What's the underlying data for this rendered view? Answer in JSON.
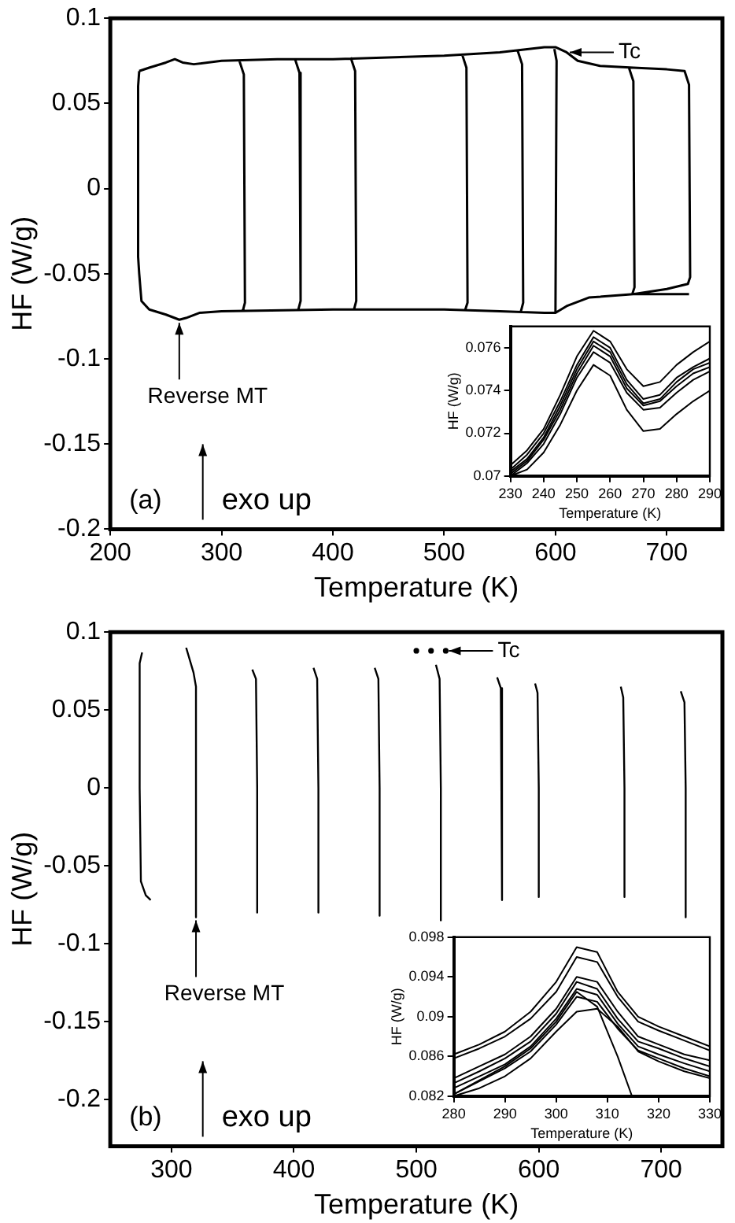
{
  "chart_data": [
    {
      "type": "line",
      "xlabel": "Temperature (K)",
      "ylabel": "HF (W/g)",
      "xlim": [
        200,
        750
      ],
      "ylim": [
        -0.2,
        0.1
      ],
      "xticks": [
        200,
        300,
        400,
        500,
        600,
        700
      ],
      "yticks": [
        -0.2,
        -0.15,
        -0.1,
        -0.05,
        0,
        0.05,
        0.1
      ],
      "marker": "none",
      "annotations": [
        {
          "text": "Tc",
          "x": 610,
          "y": 0.08
        },
        {
          "text": "Reverse MT",
          "x": 262,
          "y": -0.077
        },
        "(a)",
        "exo up"
      ],
      "series": [
        {
          "color": "#000000",
          "x": [
            226,
            235,
            250,
            258,
            265,
            275,
            300,
            350,
            400,
            450,
            500,
            550,
            590,
            600,
            610,
            620,
            640,
            670,
            700,
            716,
            720,
            721,
            719,
            700,
            670,
            null,
            226,
            228,
            235,
            250,
            262,
            268,
            280,
            300,
            400,
            500,
            550,
            590,
            600,
            610,
            630,
            670,
            700,
            720,
            null,
            226,
            225,
            225,
            226,
            null,
            316,
            320,
            321,
            319,
            null,
            366,
            370,
            371,
            369,
            null,
            416,
            420,
            421,
            419,
            null,
            516,
            520,
            521,
            519,
            null,
            566,
            570,
            571,
            569,
            null,
            599,
            601,
            600,
            null,
            666,
            670,
            671,
            669
          ],
          "values": [
            0.069,
            0.071,
            0.074,
            0.076,
            0.074,
            0.073,
            0.075,
            0.076,
            0.076,
            0.077,
            0.078,
            0.08,
            0.083,
            0.083,
            0.08,
            0.075,
            0.072,
            0.071,
            0.07,
            0.069,
            0.061,
            -0.052,
            -0.056,
            -0.059,
            -0.062,
            null,
            -0.05,
            -0.066,
            -0.071,
            -0.074,
            -0.077,
            -0.076,
            -0.073,
            -0.072,
            -0.071,
            -0.071,
            -0.072,
            -0.073,
            -0.073,
            -0.069,
            -0.064,
            -0.062,
            -0.062,
            -0.062,
            null,
            -0.05,
            -0.04,
            0.06,
            0.069,
            null,
            0.075,
            0.067,
            -0.067,
            -0.072,
            null,
            0.076,
            0.068,
            -0.066,
            -0.071,
            null,
            0.077,
            0.069,
            -0.066,
            -0.071,
            null,
            0.079,
            0.071,
            -0.067,
            -0.071,
            null,
            0.081,
            0.073,
            -0.067,
            -0.072,
            null,
            0.082,
            0.075,
            -0.073,
            null,
            0.071,
            0.063,
            -0.058,
            -0.062
          ]
        }
      ]
    },
    {
      "type": "line",
      "xlabel": "Temperature (K)",
      "ylabel": "HF (W/g)",
      "xlim": [
        230,
        290
      ],
      "ylim": [
        0.07,
        0.077
      ],
      "xticks": [
        230,
        240,
        250,
        260,
        270,
        280,
        290
      ],
      "yticks": [
        0.07,
        0.072,
        0.074,
        0.076
      ],
      "marker": "none",
      "series": [
        {
          "color": "#000000",
          "x": [
            230,
            235,
            240,
            245,
            250,
            255,
            260,
            265,
            270,
            275,
            280,
            285,
            290
          ],
          "values": [
            0.0705,
            0.0712,
            0.0722,
            0.0738,
            0.0756,
            0.0768,
            0.0763,
            0.075,
            0.0742,
            0.0744,
            0.0752,
            0.0758,
            0.0763
          ]
        },
        {
          "color": "#000000",
          "x": [
            230,
            235,
            240,
            245,
            250,
            255,
            260,
            265,
            270,
            275,
            280,
            285,
            290
          ],
          "values": [
            0.0703,
            0.071,
            0.072,
            0.0735,
            0.0752,
            0.0765,
            0.076,
            0.0745,
            0.0736,
            0.0738,
            0.0746,
            0.0751,
            0.0755
          ]
        },
        {
          "color": "#000000",
          "x": [
            230,
            235,
            240,
            245,
            250,
            255,
            260,
            265,
            270,
            275,
            280,
            285,
            290
          ],
          "values": [
            0.0702,
            0.0708,
            0.0718,
            0.0733,
            0.075,
            0.0763,
            0.0758,
            0.0743,
            0.0734,
            0.0736,
            0.0744,
            0.075,
            0.0753
          ]
        },
        {
          "color": "#000000",
          "x": [
            230,
            235,
            240,
            245,
            250,
            255,
            260,
            265,
            270,
            275,
            280,
            285,
            290
          ],
          "values": [
            0.0701,
            0.0707,
            0.0717,
            0.0731,
            0.0748,
            0.0761,
            0.0756,
            0.0741,
            0.0733,
            0.0735,
            0.0742,
            0.0748,
            0.0751
          ]
        },
        {
          "color": "#000000",
          "x": [
            230,
            235,
            240,
            245,
            250,
            255,
            260,
            265,
            270,
            275,
            280,
            285,
            290
          ],
          "values": [
            0.07,
            0.0706,
            0.0715,
            0.0729,
            0.0746,
            0.0758,
            0.0753,
            0.0739,
            0.0731,
            0.0732,
            0.0739,
            0.0745,
            0.0749
          ]
        },
        {
          "color": "#000000",
          "x": [
            230,
            235,
            240,
            245,
            250,
            255,
            260,
            265,
            270,
            275,
            280,
            285,
            290
          ],
          "values": [
            0.07,
            0.0703,
            0.0711,
            0.0724,
            0.074,
            0.0752,
            0.0747,
            0.0731,
            0.0721,
            0.0722,
            0.0729,
            0.0735,
            0.074
          ]
        }
      ]
    },
    {
      "type": "line",
      "xlabel": "Temperature (K)",
      "ylabel": "HF (W/g)",
      "xlim": [
        250,
        750
      ],
      "ylim": [
        -0.23,
        0.1
      ],
      "xticks": [
        300,
        400,
        500,
        600,
        700
      ],
      "yticks": [
        -0.2,
        -0.15,
        -0.1,
        -0.05,
        0,
        0.05,
        0.1
      ],
      "marker": "none",
      "annotations": [
        {
          "text": "Tc",
          "x": 524,
          "y": 0.088
        },
        {
          "text": "Reverse MT",
          "x": 320,
          "y": -0.083
        },
        "(b)",
        "exo up"
      ],
      "series": [
        {
          "color": "#000000",
          "x": [
            276,
            274,
            274,
            275,
            279,
            283
          ],
          "values": [
            0.087,
            0.08,
            0,
            -0.06,
            -0.069,
            -0.072
          ]
        },
        {
          "color": "#000000",
          "x": [
            312,
            318,
            320,
            320,
            320
          ],
          "values": [
            0.09,
            0.074,
            0.065,
            0,
            -0.083
          ]
        },
        {
          "color": "#000000",
          "x": [
            366,
            369,
            370,
            370
          ],
          "values": [
            0.076,
            0.07,
            0,
            -0.08
          ]
        },
        {
          "color": "#000000",
          "x": [
            416,
            419,
            420,
            420
          ],
          "values": [
            0.077,
            0.07,
            0,
            -0.08
          ]
        },
        {
          "color": "#000000",
          "x": [
            466,
            469,
            470,
            470
          ],
          "values": [
            0.077,
            0.07,
            0,
            -0.082
          ]
        },
        {
          "color": "#000000",
          "x": [
            516,
            519,
            520,
            520
          ],
          "values": [
            0.079,
            0.07,
            0,
            -0.085
          ]
        },
        {
          "color": "#000000",
          "x": [
            566,
            569,
            570,
            570
          ],
          "values": [
            0.071,
            0.064,
            0,
            -0.072
          ]
        },
        {
          "color": "#000000",
          "x": [
            597,
            599,
            600,
            600
          ],
          "values": [
            0.067,
            0.061,
            0,
            -0.07
          ]
        },
        {
          "color": "#000000",
          "x": [
            667,
            669,
            670,
            670
          ],
          "values": [
            0.065,
            0.058,
            0,
            -0.07
          ]
        },
        {
          "color": "#000000",
          "x": [
            716,
            719,
            720,
            720
          ],
          "values": [
            0.062,
            0.055,
            0,
            -0.083
          ]
        },
        {
          "type": "scatter",
          "marker": "circle",
          "color": "#000000",
          "x": [
            500,
            512,
            524
          ],
          "values": [
            0.088,
            0.088,
            0.088
          ]
        }
      ]
    },
    {
      "type": "line",
      "xlabel": "Temperature (K)",
      "ylabel": "HF (W/g)",
      "xlim": [
        280,
        330
      ],
      "ylim": [
        0.082,
        0.098
      ],
      "xticks": [
        280,
        290,
        300,
        310,
        320,
        330
      ],
      "yticks": [
        0.082,
        0.086,
        0.09,
        0.094,
        0.098
      ],
      "marker": "none",
      "series": [
        {
          "color": "#000000",
          "x": [
            280,
            285,
            290,
            295,
            300,
            304,
            308,
            312,
            316,
            320,
            325,
            330
          ],
          "values": [
            0.0862,
            0.0872,
            0.0885,
            0.0905,
            0.0935,
            0.097,
            0.0965,
            0.0925,
            0.09,
            0.089,
            0.088,
            0.087
          ]
        },
        {
          "color": "#000000",
          "x": [
            280,
            285,
            290,
            295,
            300,
            304,
            308,
            312,
            316,
            320,
            325,
            330
          ],
          "values": [
            0.0858,
            0.0868,
            0.088,
            0.0898,
            0.0925,
            0.096,
            0.0955,
            0.092,
            0.0895,
            0.0886,
            0.0876,
            0.0866
          ]
        },
        {
          "color": "#000000",
          "x": [
            280,
            285,
            290,
            295,
            300,
            304,
            308,
            312,
            316,
            320,
            325,
            330
          ],
          "values": [
            0.0838,
            0.085,
            0.0862,
            0.088,
            0.0908,
            0.094,
            0.0935,
            0.0905,
            0.088,
            0.0872,
            0.0862,
            0.0856
          ]
        },
        {
          "color": "#000000",
          "x": [
            280,
            285,
            290,
            295,
            300,
            304,
            308,
            312,
            316,
            320,
            325,
            330
          ],
          "values": [
            0.0833,
            0.0845,
            0.0858,
            0.0875,
            0.0903,
            0.0935,
            0.0928,
            0.0898,
            0.0875,
            0.0868,
            0.0858,
            0.085
          ]
        },
        {
          "color": "#000000",
          "x": [
            280,
            285,
            290,
            295,
            300,
            304,
            308,
            312,
            316,
            320,
            325,
            330
          ],
          "values": [
            0.0828,
            0.084,
            0.0852,
            0.087,
            0.0898,
            0.0928,
            0.0922,
            0.0893,
            0.087,
            0.0862,
            0.0853,
            0.0845
          ]
        },
        {
          "color": "#000000",
          "x": [
            280,
            285,
            290,
            295,
            300,
            304,
            308,
            312,
            316,
            320,
            325,
            330
          ],
          "values": [
            0.0822,
            0.0835,
            0.0848,
            0.0865,
            0.0892,
            0.092,
            0.0915,
            0.0888,
            0.0866,
            0.0858,
            0.0848,
            0.084
          ]
        },
        {
          "color": "#000000",
          "x": [
            280,
            285,
            290,
            295,
            300,
            304,
            308,
            312,
            316,
            320,
            325,
            330
          ],
          "values": [
            0.082,
            0.0828,
            0.084,
            0.0858,
            0.0885,
            0.0905,
            0.0908,
            0.089,
            0.0865,
            0.0855,
            0.0845,
            0.0838
          ]
        },
        {
          "color": "#000000",
          "x": [
            280,
            285,
            290,
            295,
            300,
            304,
            308,
            312,
            314.8
          ],
          "values": [
            0.0822,
            0.0836,
            0.085,
            0.0868,
            0.0895,
            0.0925,
            0.091,
            0.086,
            0.082
          ]
        }
      ]
    }
  ]
}
